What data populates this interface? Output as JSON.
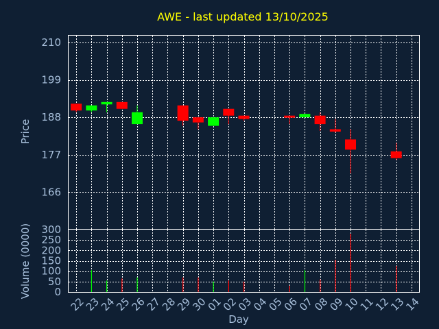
{
  "chart_data": {
    "type": "candlestick",
    "title": "AWE - last updated 13/10/2025",
    "xlabel": "Day",
    "colors": {
      "background": "#0f1f33",
      "title": "#ffff00",
      "axis_text": "#a9c1dd",
      "frame": "#ffffff",
      "grid": "#ffffff",
      "up": "#00ff00",
      "down": "#ff0000"
    },
    "x_tick_labels": [
      "22",
      "23",
      "24",
      "25",
      "26",
      "27",
      "28",
      "29",
      "30",
      "01",
      "02",
      "03",
      "04",
      "05",
      "06",
      "07",
      "08",
      "09",
      "10",
      "11",
      "12",
      "13",
      "14"
    ],
    "price_panel": {
      "ylabel": "Price",
      "ylim": [
        155,
        212
      ],
      "yticks": [
        166,
        177,
        188,
        199,
        210
      ],
      "grid": true,
      "candles": [
        {
          "x": 0,
          "open": 192.0,
          "high": 192.0,
          "low": 189.5,
          "close": 190.0
        },
        {
          "x": 1,
          "open": 190.0,
          "high": 191.5,
          "low": 189.5,
          "close": 191.5
        },
        {
          "x": 2,
          "open": 191.8,
          "high": 192.5,
          "low": 189.5,
          "close": 192.5
        },
        {
          "x": 3,
          "open": 192.5,
          "high": 192.5,
          "low": 190.5,
          "close": 190.5
        },
        {
          "x": 4,
          "open": 186.0,
          "high": 191.5,
          "low": 186.0,
          "close": 189.5
        },
        {
          "x": 7,
          "open": 191.5,
          "high": 191.5,
          "low": 185.5,
          "close": 187.0
        },
        {
          "x": 8,
          "open": 188.0,
          "high": 188.0,
          "low": 184.5,
          "close": 186.5
        },
        {
          "x": 9,
          "open": 185.5,
          "high": 188.0,
          "low": 185.5,
          "close": 188.0
        },
        {
          "x": 10,
          "open": 190.5,
          "high": 190.5,
          "low": 186.0,
          "close": 188.5
        },
        {
          "x": 11,
          "open": 188.5,
          "high": 188.5,
          "low": 187.0,
          "close": 187.5
        },
        {
          "x": 14,
          "open": 188.5,
          "high": 188.5,
          "low": 186.0,
          "close": 188.3
        },
        {
          "x": 15,
          "open": 188.0,
          "high": 189.0,
          "low": 188.0,
          "close": 189.0
        },
        {
          "x": 16,
          "open": 188.5,
          "high": 189.5,
          "low": 184.0,
          "close": 186.0
        },
        {
          "x": 17,
          "open": 184.5,
          "high": 187.5,
          "low": 183.5,
          "close": 183.8
        },
        {
          "x": 18,
          "open": 181.5,
          "high": 184.5,
          "low": 171.5,
          "close": 178.5
        },
        {
          "x": 21,
          "open": 178.0,
          "high": 180.5,
          "low": 175.5,
          "close": 176.0
        }
      ]
    },
    "volume_panel": {
      "ylabel": "Volume (0000)",
      "ylim": [
        0,
        300
      ],
      "yticks": [
        0,
        50,
        100,
        150,
        200,
        250,
        300
      ],
      "grid": true,
      "bars": [
        {
          "x": 0,
          "value": 0,
          "dir": "down"
        },
        {
          "x": 1,
          "value": 105,
          "dir": "up"
        },
        {
          "x": 2,
          "value": 55,
          "dir": "up"
        },
        {
          "x": 3,
          "value": 65,
          "dir": "down"
        },
        {
          "x": 4,
          "value": 70,
          "dir": "up"
        },
        {
          "x": 7,
          "value": 70,
          "dir": "down"
        },
        {
          "x": 8,
          "value": 70,
          "dir": "down"
        },
        {
          "x": 9,
          "value": 50,
          "dir": "up"
        },
        {
          "x": 10,
          "value": 55,
          "dir": "down"
        },
        {
          "x": 11,
          "value": 50,
          "dir": "down"
        },
        {
          "x": 14,
          "value": 30,
          "dir": "down"
        },
        {
          "x": 15,
          "value": 105,
          "dir": "up"
        },
        {
          "x": 16,
          "value": 60,
          "dir": "down"
        },
        {
          "x": 17,
          "value": 155,
          "dir": "down"
        },
        {
          "x": 18,
          "value": 280,
          "dir": "down"
        },
        {
          "x": 21,
          "value": 125,
          "dir": "down"
        }
      ]
    }
  }
}
